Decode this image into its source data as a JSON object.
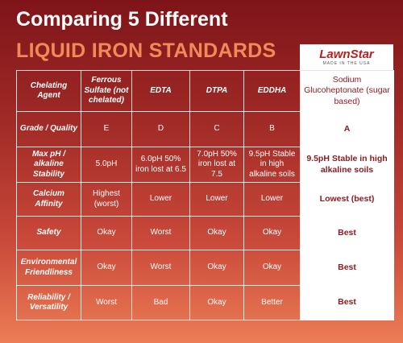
{
  "header": {
    "title_line1": "Comparing 5 Different",
    "title_line2": "LIQUID IRON STANDARDS"
  },
  "logo": {
    "brand": "LawnStar",
    "tagline": "MADE IN THE USA"
  },
  "table": {
    "columns": [
      "Chelating Agent",
      "Ferrous Sulfate (not chelated)",
      "EDTA",
      "DTPA",
      "EDDHA",
      "Sodium Glucoheptonate (sugar based)"
    ],
    "rows": [
      [
        "Grade / Quality",
        "E",
        "D",
        "C",
        "B",
        "A"
      ],
      [
        "Max pH / alkaline Stability",
        "5.0pH",
        "6.0pH 50% iron lost at 6.5",
        "7.0pH 50% iron lost at 7.5",
        "9.5pH Stable in high alkaline soils",
        "9.5pH Stable in high alkaline soils"
      ],
      [
        "Calcium Affinity",
        "Highest (worst)",
        "Lower",
        "Lower",
        "Lower",
        "Lowest (best)"
      ],
      [
        "Safety",
        "Okay",
        "Worst",
        "Okay",
        "Okay",
        "Best"
      ],
      [
        "Environmental Friendliness",
        "Okay",
        "Worst",
        "Okay",
        "Okay",
        "Best"
      ],
      [
        "Reliability / Versatility",
        "Worst",
        "Bad",
        "Okay",
        "Better",
        "Best"
      ]
    ]
  }
}
